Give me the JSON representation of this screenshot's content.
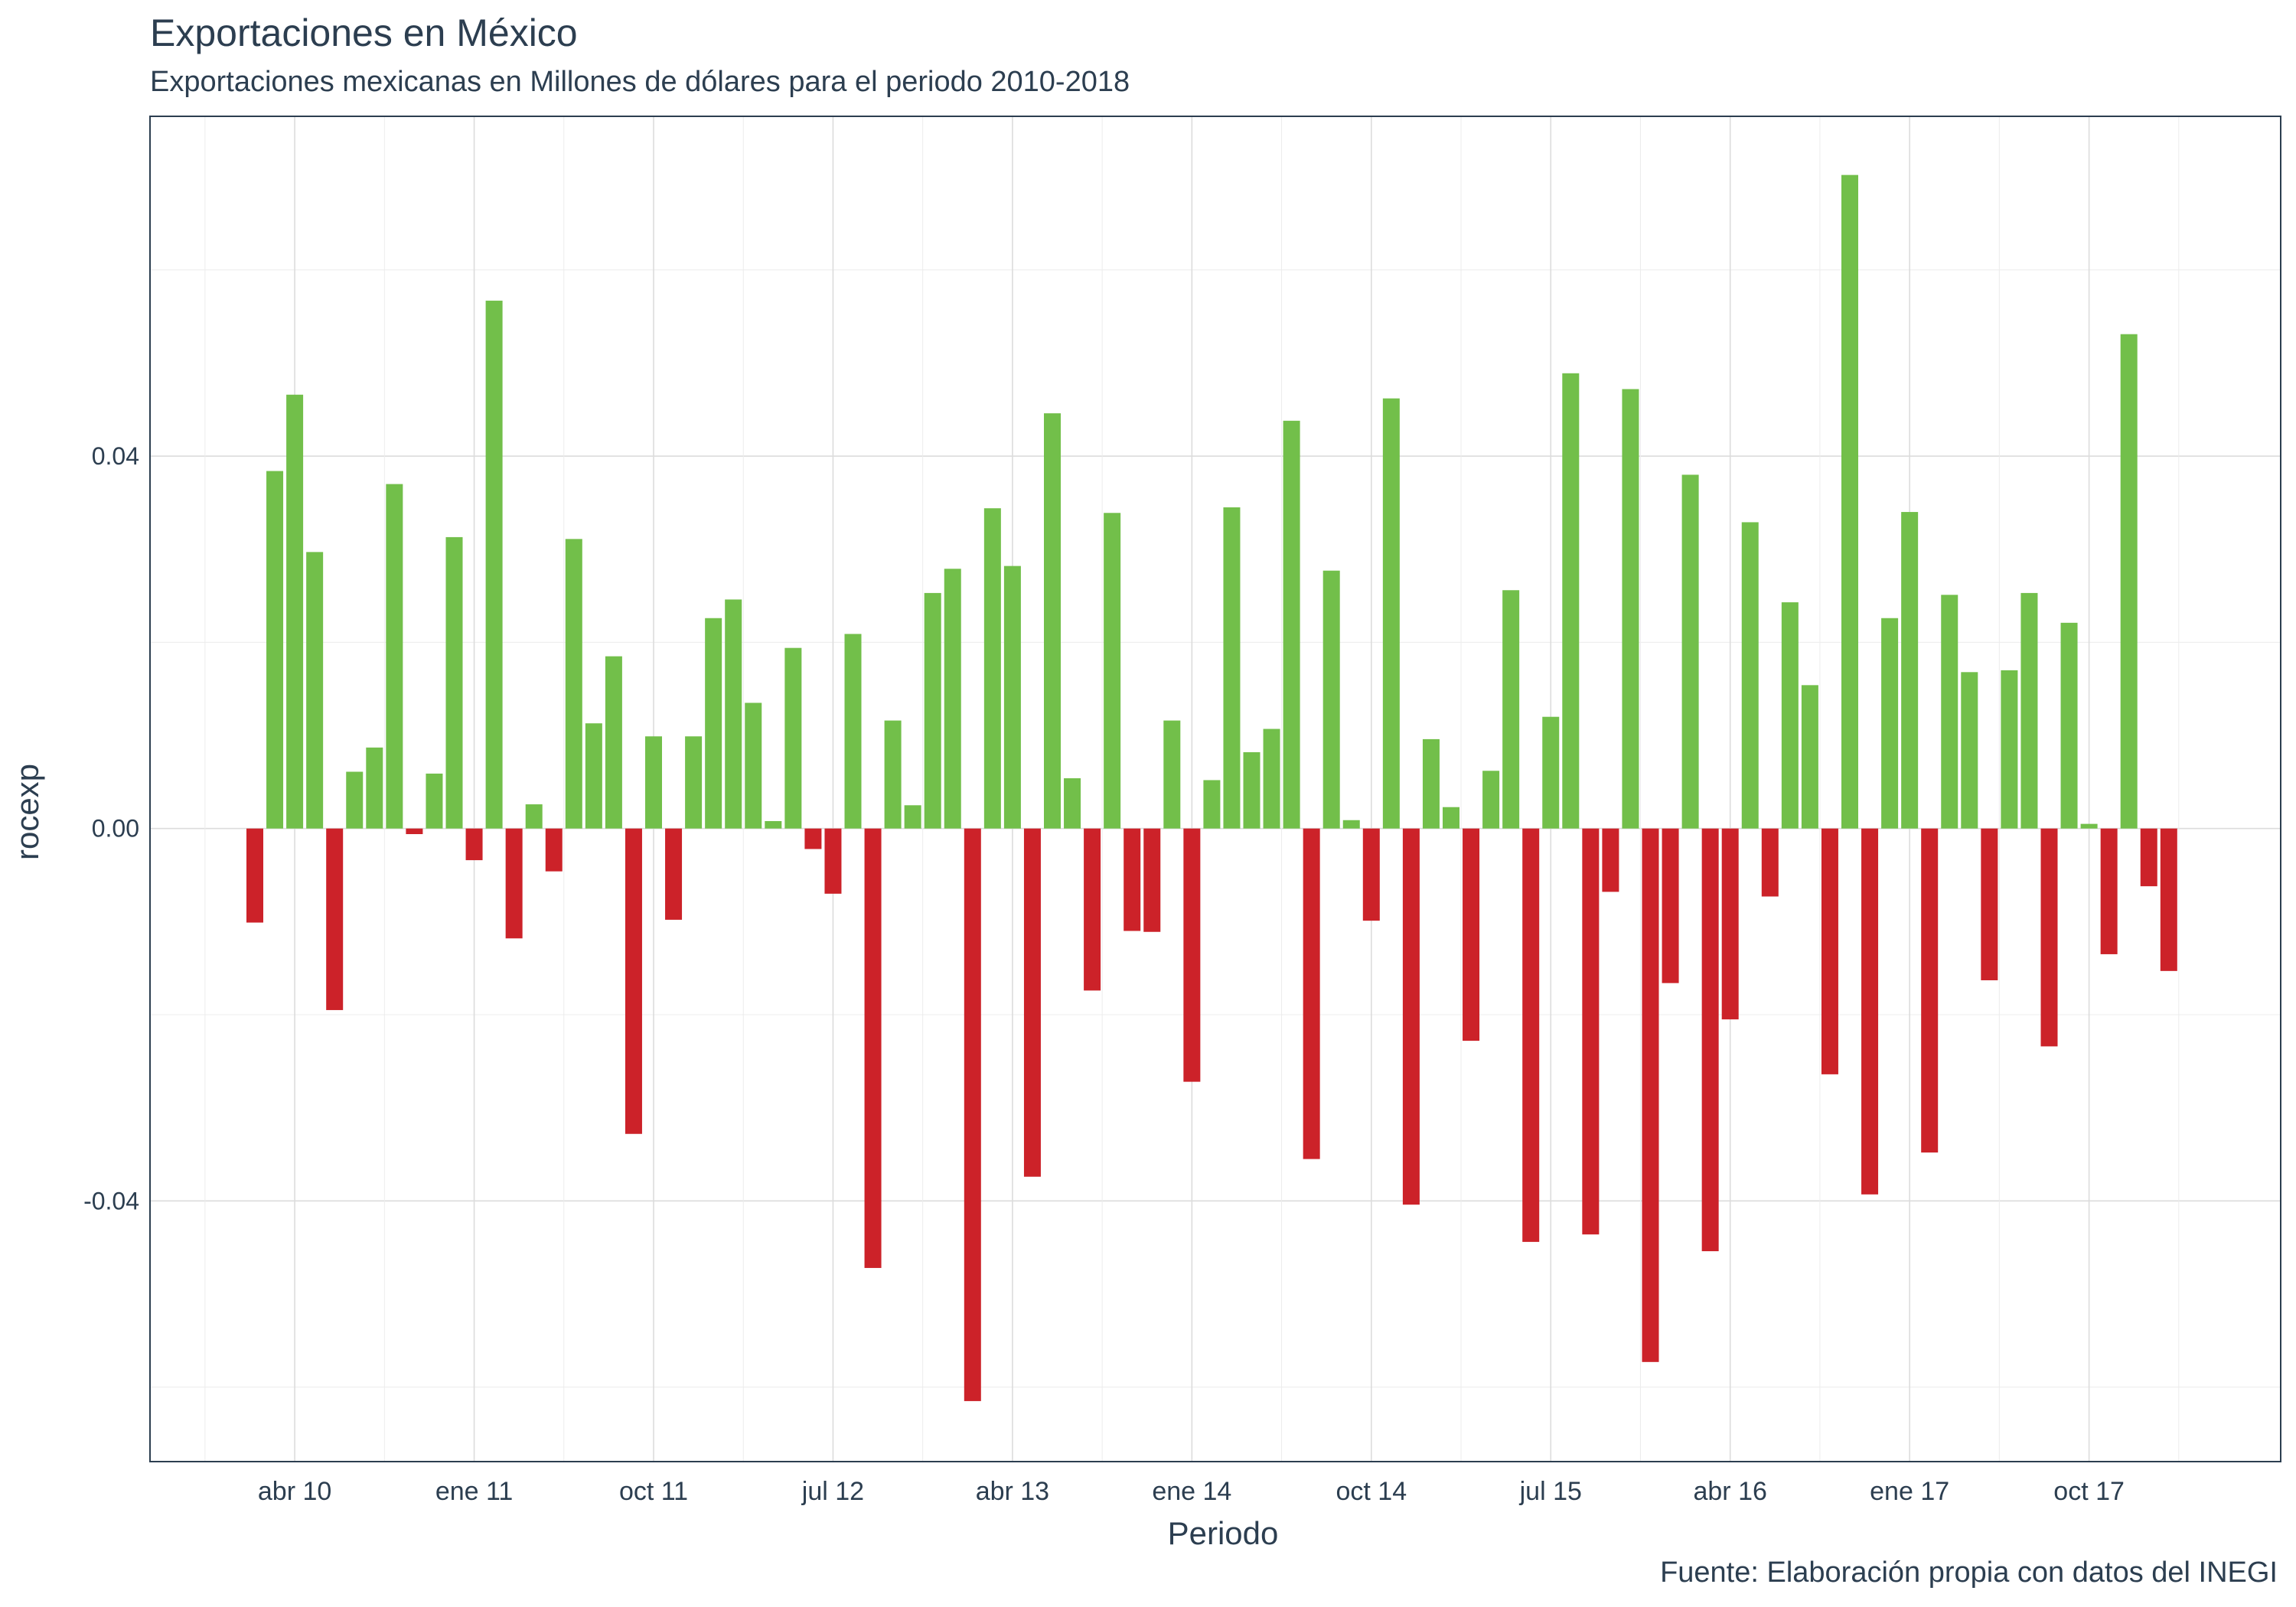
{
  "chart_data": {
    "type": "bar",
    "title": "Exportaciones en México",
    "subtitle": "Exportaciones mexicanas en Millones de dólares para el periodo 2010-2018",
    "caption": "Fuente: Elaboración propia con datos del INEGI",
    "xlabel": "Periodo",
    "ylabel": "rocexp",
    "ylim": [
      -0.068,
      0.0765
    ],
    "y_ticks": [
      -0.04,
      0.0,
      0.04
    ],
    "y_tick_labels": [
      "-0.04",
      "0.00",
      "0.04"
    ],
    "grid": true,
    "start_period": "2010-02",
    "x_ticks": [
      {
        "label": "abr 10",
        "index": 2
      },
      {
        "label": "ene 11",
        "index": 11
      },
      {
        "label": "oct 11",
        "index": 20
      },
      {
        "label": "jul 12",
        "index": 29
      },
      {
        "label": "abr 13",
        "index": 38
      },
      {
        "label": "ene 14",
        "index": 47
      },
      {
        "label": "oct 14",
        "index": 56
      },
      {
        "label": "jul 15",
        "index": 65
      },
      {
        "label": "abr 16",
        "index": 74
      },
      {
        "label": "ene 17",
        "index": 83
      },
      {
        "label": "oct 17",
        "index": 92
      }
    ],
    "colors": {
      "positive": "#72bf4a",
      "negative": "#cc2229"
    },
    "values": [
      -0.0101,
      0.0384,
      0.0466,
      0.0297,
      -0.0195,
      0.0061,
      0.0087,
      0.037,
      -0.0006,
      0.0059,
      0.0313,
      -0.0034,
      0.0567,
      -0.0118,
      0.0026,
      -0.0046,
      0.0311,
      0.0113,
      0.0185,
      -0.0328,
      0.0099,
      -0.0098,
      0.0099,
      0.0226,
      0.0246,
      0.0135,
      0.0008,
      0.0194,
      -0.0022,
      -0.007,
      0.0209,
      -0.0472,
      0.0116,
      0.0025,
      0.0253,
      0.0279,
      -0.0615,
      0.0344,
      0.0282,
      -0.0374,
      0.0446,
      0.0054,
      -0.0174,
      0.0339,
      -0.011,
      -0.0111,
      0.0116,
      -0.0272,
      0.0052,
      0.0345,
      0.0082,
      0.0107,
      0.0438,
      -0.0355,
      0.0277,
      0.0009,
      -0.0099,
      0.0462,
      -0.0404,
      0.0096,
      0.0023,
      -0.0228,
      0.0062,
      0.0256,
      -0.0444,
      0.012,
      0.0489,
      -0.0436,
      -0.0068,
      0.0472,
      -0.0573,
      -0.0166,
      0.038,
      -0.0454,
      -0.0205,
      0.0329,
      -0.0073,
      0.0243,
      0.0154,
      -0.0264,
      0.0702,
      -0.0393,
      0.0226,
      0.034,
      -0.0348,
      0.0251,
      0.0168,
      -0.0163,
      0.017,
      0.0253,
      -0.0234,
      0.0221,
      0.0005,
      -0.0135,
      0.0531,
      -0.0062,
      -0.0153
    ]
  }
}
